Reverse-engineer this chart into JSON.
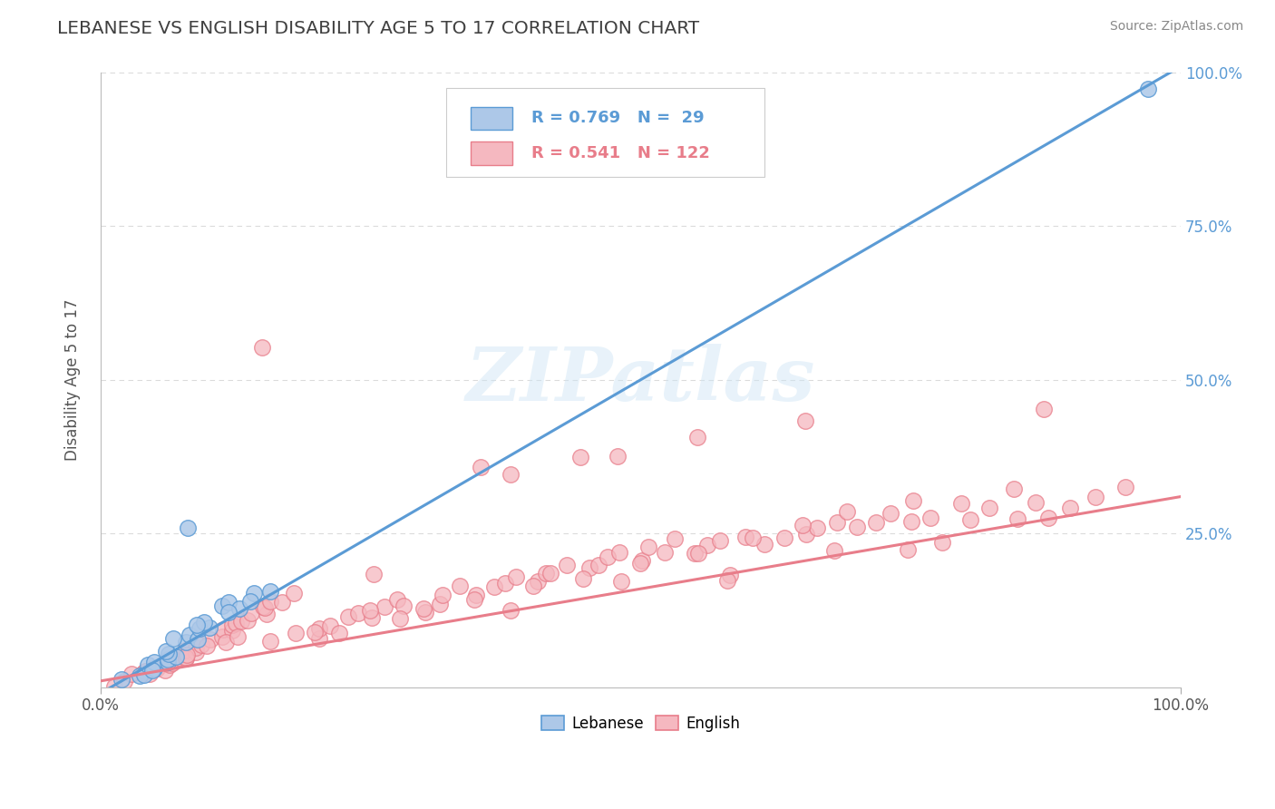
{
  "title": "LEBANESE VS ENGLISH DISABILITY AGE 5 TO 17 CORRELATION CHART",
  "source": "Source: ZipAtlas.com",
  "ylabel": "Disability Age 5 to 17",
  "blue_color": "#5b9bd5",
  "pink_color": "#e87d8a",
  "blue_fill": "#adc8e8",
  "pink_fill": "#f5b8c0",
  "watermark_text": "ZIPatlas",
  "background_color": "#ffffff",
  "grid_color": "#cccccc",
  "title_color": "#404040",
  "right_axis_color": "#5b9bd5",
  "blue_R": 0.769,
  "blue_N": 29,
  "pink_R": 0.541,
  "pink_N": 122,
  "blue_legend_text": "R = 0.769   N =  29",
  "pink_legend_text": "R = 0.541   N = 122",
  "blue_slope": 1.02,
  "blue_intercept": -0.01,
  "pink_slope": 0.3,
  "pink_intercept": 0.01,
  "blue_x": [
    0.02,
    0.03,
    0.04,
    0.04,
    0.05,
    0.05,
    0.06,
    0.06,
    0.07,
    0.07,
    0.08,
    0.08,
    0.09,
    0.09,
    0.1,
    0.1,
    0.11,
    0.12,
    0.13,
    0.14,
    0.05,
    0.06,
    0.07,
    0.09,
    0.12,
    0.14,
    0.16,
    0.97,
    0.08
  ],
  "blue_y": [
    0.01,
    0.02,
    0.02,
    0.03,
    0.03,
    0.04,
    0.04,
    0.05,
    0.05,
    0.06,
    0.07,
    0.08,
    0.08,
    0.09,
    0.1,
    0.11,
    0.13,
    0.14,
    0.13,
    0.15,
    0.03,
    0.06,
    0.08,
    0.1,
    0.12,
    0.14,
    0.16,
    0.97,
    0.25
  ],
  "pink_x": [
    0.01,
    0.02,
    0.03,
    0.04,
    0.05,
    0.05,
    0.06,
    0.06,
    0.07,
    0.07,
    0.08,
    0.08,
    0.09,
    0.09,
    0.1,
    0.1,
    0.11,
    0.11,
    0.12,
    0.12,
    0.13,
    0.13,
    0.14,
    0.14,
    0.15,
    0.15,
    0.16,
    0.16,
    0.17,
    0.18,
    0.2,
    0.2,
    0.21,
    0.22,
    0.23,
    0.24,
    0.25,
    0.26,
    0.27,
    0.28,
    0.3,
    0.31,
    0.32,
    0.33,
    0.35,
    0.36,
    0.37,
    0.38,
    0.4,
    0.41,
    0.42,
    0.43,
    0.45,
    0.46,
    0.47,
    0.48,
    0.5,
    0.51,
    0.52,
    0.53,
    0.55,
    0.56,
    0.57,
    0.6,
    0.61,
    0.63,
    0.65,
    0.66,
    0.68,
    0.7,
    0.72,
    0.73,
    0.75,
    0.77,
    0.8,
    0.82,
    0.85,
    0.87,
    0.9,
    0.92,
    0.08,
    0.12,
    0.18,
    0.25,
    0.3,
    0.35,
    0.4,
    0.45,
    0.5,
    0.55,
    0.6,
    0.65,
    0.7,
    0.75,
    0.8,
    0.85,
    0.35,
    0.45,
    0.55,
    0.65,
    0.04,
    0.06,
    0.08,
    0.1,
    0.13,
    0.15,
    0.2,
    0.28,
    0.38,
    0.48,
    0.58,
    0.68,
    0.78,
    0.88,
    0.15,
    0.25,
    0.38,
    0.48,
    0.58,
    0.75,
    0.88,
    0.95
  ],
  "pink_y": [
    0.01,
    0.01,
    0.02,
    0.02,
    0.02,
    0.03,
    0.03,
    0.04,
    0.04,
    0.05,
    0.05,
    0.06,
    0.06,
    0.07,
    0.07,
    0.08,
    0.08,
    0.09,
    0.09,
    0.1,
    0.1,
    0.11,
    0.11,
    0.12,
    0.12,
    0.13,
    0.13,
    0.14,
    0.14,
    0.15,
    0.08,
    0.1,
    0.1,
    0.09,
    0.11,
    0.12,
    0.11,
    0.13,
    0.14,
    0.13,
    0.12,
    0.14,
    0.15,
    0.16,
    0.15,
    0.16,
    0.17,
    0.18,
    0.17,
    0.19,
    0.18,
    0.2,
    0.19,
    0.2,
    0.21,
    0.22,
    0.21,
    0.23,
    0.22,
    0.24,
    0.22,
    0.23,
    0.24,
    0.25,
    0.23,
    0.24,
    0.25,
    0.26,
    0.27,
    0.26,
    0.27,
    0.28,
    0.27,
    0.28,
    0.27,
    0.29,
    0.28,
    0.3,
    0.29,
    0.31,
    0.05,
    0.07,
    0.09,
    0.12,
    0.13,
    0.14,
    0.16,
    0.18,
    0.2,
    0.22,
    0.24,
    0.26,
    0.28,
    0.3,
    0.3,
    0.32,
    0.35,
    0.37,
    0.4,
    0.43,
    0.03,
    0.04,
    0.05,
    0.07,
    0.08,
    0.08,
    0.09,
    0.11,
    0.13,
    0.17,
    0.18,
    0.22,
    0.24,
    0.28,
    0.55,
    0.18,
    0.35,
    0.38,
    0.17,
    0.23,
    0.45,
    0.33
  ]
}
